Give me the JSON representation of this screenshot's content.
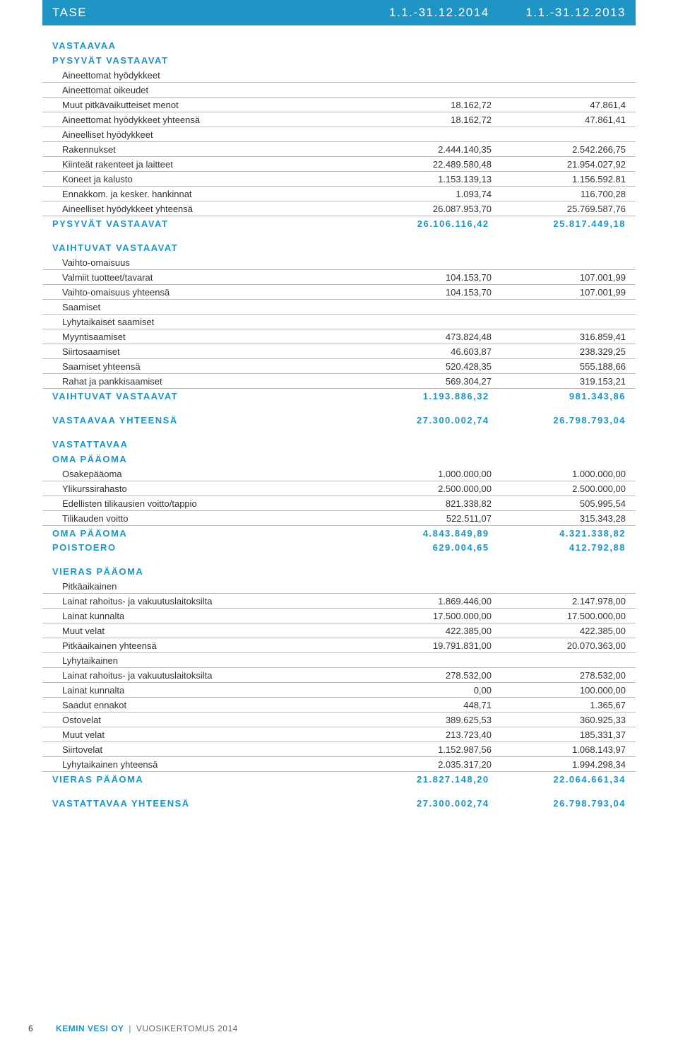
{
  "header": {
    "title": "TASE",
    "col1": "1.1.-31.12.2014",
    "col2": "1.1.-31.12.2013"
  },
  "s1": {
    "h1": "VASTAAVAA",
    "h2": "PYSYVÄT VASTAAVAT"
  },
  "g1": [
    {
      "lbl": "Aineettomat hyödykkeet",
      "v1": "",
      "v2": ""
    },
    {
      "lbl": "Aineettomat oikeudet",
      "v1": "",
      "v2": ""
    },
    {
      "lbl": "Muut pitkävaikutteiset menot",
      "v1": "18.162,72",
      "v2": "47.861,4"
    },
    {
      "lbl": "Aineettomat hyödykkeet yhteensä",
      "v1": "18.162,72",
      "v2": "47.861,41"
    },
    {
      "lbl": "Aineelliset hyödykkeet",
      "v1": "",
      "v2": ""
    },
    {
      "lbl": "Rakennukset",
      "v1": "2.444.140,35",
      "v2": "2.542.266,75"
    },
    {
      "lbl": "Kiinteät rakenteet ja laitteet",
      "v1": "22.489.580,48",
      "v2": "21.954.027,92"
    },
    {
      "lbl": "Koneet ja kalusto",
      "v1": "1.153.139,13",
      "v2": "1.156.592.81"
    },
    {
      "lbl": "Ennakkom. ja kesker. hankinnat",
      "v1": "1.093,74",
      "v2": "116.700,28"
    },
    {
      "lbl": "Aineelliset hyödykkeet yhteensä",
      "v1": "26.087.953,70",
      "v2": "25.769.587,76"
    }
  ],
  "t1": {
    "lbl": "PYSYVÄT VASTAAVAT",
    "v1": "26.106.116,42",
    "v2": "25.817.449,18"
  },
  "s2": {
    "h": "VAIHTUVAT VASTAAVAT"
  },
  "g2": [
    {
      "lbl": "Vaihto-omaisuus",
      "v1": "",
      "v2": ""
    },
    {
      "lbl": "Valmiit tuotteet/tavarat",
      "v1": "104.153,70",
      "v2": "107.001,99"
    },
    {
      "lbl": "Vaihto-omaisuus yhteensä",
      "v1": "104.153,70",
      "v2": "107.001,99"
    },
    {
      "lbl": "Saamiset",
      "v1": "",
      "v2": ""
    },
    {
      "lbl": "Lyhytaikaiset saamiset",
      "v1": "",
      "v2": ""
    },
    {
      "lbl": "Myyntisaamiset",
      "v1": "473.824,48",
      "v2": "316.859,41"
    },
    {
      "lbl": "Siirtosaamiset",
      "v1": "46.603,87",
      "v2": "238.329,25"
    },
    {
      "lbl": "Saamiset yhteensä",
      "v1": "520.428,35",
      "v2": "555.188,66"
    },
    {
      "lbl": "Rahat ja pankkisaamiset",
      "v1": "569.304,27",
      "v2": "319.153,21"
    }
  ],
  "t2": {
    "lbl": "VAIHTUVAT VASTAAVAT",
    "v1": "1.193.886,32",
    "v2": "981.343,86"
  },
  "t3": {
    "lbl": "VASTAAVAA YHTEENSÄ",
    "v1": "27.300.002,74",
    "v2": "26.798.793,04"
  },
  "s3": {
    "h1": "VASTATTAVAA",
    "h2": "OMA PÄÄOMA"
  },
  "g3": [
    {
      "lbl": "Osakepääoma",
      "v1": "1.000.000,00",
      "v2": "1.000.000,00"
    },
    {
      "lbl": "Ylikurssirahasto",
      "v1": "2.500.000,00",
      "v2": "2.500.000,00"
    },
    {
      "lbl": "Edellisten tilikausien voitto/tappio",
      "v1": "821.338,82",
      "v2": "505.995,54"
    },
    {
      "lbl": "Tilikauden voitto",
      "v1": "522.511,07",
      "v2": "315.343,28"
    }
  ],
  "t4": {
    "lbl": "OMA PÄÄOMA",
    "v1": "4.843.849,89",
    "v2": "4.321.338,82"
  },
  "t5": {
    "lbl": "POISTOERO",
    "v1": "629.004,65",
    "v2": "412.792,88"
  },
  "s4": {
    "h": "VIERAS PÄÄOMA"
  },
  "g4": [
    {
      "lbl": "Pitkäaikainen",
      "v1": "",
      "v2": ""
    },
    {
      "lbl": "Lainat rahoitus- ja vakuutuslaitoksilta",
      "v1": "1.869.446,00",
      "v2": "2.147.978,00"
    },
    {
      "lbl": "Lainat kunnalta",
      "v1": "17.500.000,00",
      "v2": "17.500.000,00"
    },
    {
      "lbl": "Muut velat",
      "v1": "422.385,00",
      "v2": "422.385,00"
    },
    {
      "lbl": "Pitkäaikainen yhteensä",
      "v1": "19.791.831,00",
      "v2": "20.070.363,00"
    },
    {
      "lbl": "Lyhytaikainen",
      "v1": "",
      "v2": ""
    },
    {
      "lbl": "Lainat rahoitus- ja vakuutuslaitoksilta",
      "v1": "278.532,00",
      "v2": "278.532,00"
    },
    {
      "lbl": "Lainat kunnalta",
      "v1": "0,00",
      "v2": "100.000,00"
    },
    {
      "lbl": "Saadut ennakot",
      "v1": "448,71",
      "v2": "1.365,67"
    },
    {
      "lbl": "Ostovelat",
      "v1": "389.625,53",
      "v2": "360.925,33"
    },
    {
      "lbl": "Muut velat",
      "v1": "213.723,40",
      "v2": "185.331,37"
    },
    {
      "lbl": "Siirtovelat",
      "v1": "1.152.987,56",
      "v2": "1.068.143,97"
    },
    {
      "lbl": "Lyhytaikainen yhteensä",
      "v1": "2.035.317,20",
      "v2": "1.994.298,34"
    }
  ],
  "t6": {
    "lbl": "VIERAS PÄÄOMA",
    "v1": "21.827.148,20",
    "v2": "22.064.661,34"
  },
  "t7": {
    "lbl": "VASTATTAVAA YHTEENSÄ",
    "v1": "27.300.002,74",
    "v2": "26.798.793,04"
  },
  "footer": {
    "page": "6",
    "brand": "KEMIN VESI OY",
    "rest": "VUOSIKERTOMUS 2014"
  }
}
